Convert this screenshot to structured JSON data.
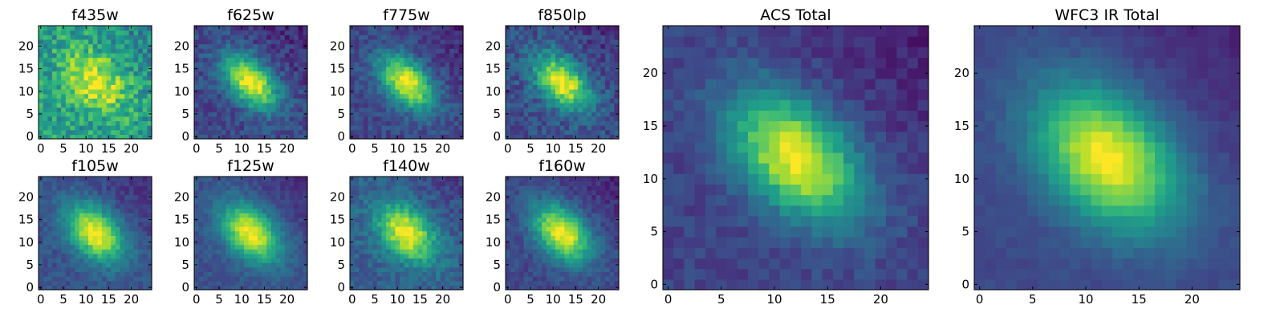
{
  "chart_data": [
    {
      "type": "heatmap",
      "title": "f435w",
      "center": [
        12,
        12
      ],
      "sigma": [
        5.2,
        3.8
      ],
      "angle_deg": -45,
      "background": 0.55,
      "peak": 0.45,
      "noise": 0.35,
      "xticks": [
        0,
        5,
        10,
        15,
        20
      ],
      "yticks": [
        0,
        5,
        10,
        15,
        20
      ],
      "xlim": [
        0,
        24
      ],
      "ylim": [
        0,
        24
      ],
      "colormap": "viridis"
    },
    {
      "type": "heatmap",
      "title": "f625w",
      "center": [
        12,
        12
      ],
      "sigma": [
        5.0,
        3.0
      ],
      "angle_deg": -45,
      "background": 0.22,
      "peak": 0.78,
      "noise": 0.2,
      "xticks": [
        0,
        5,
        10,
        15,
        20
      ],
      "yticks": [
        0,
        5,
        10,
        15,
        20
      ],
      "xlim": [
        0,
        24
      ],
      "ylim": [
        0,
        24
      ],
      "colormap": "viridis"
    },
    {
      "type": "heatmap",
      "title": "f775w",
      "center": [
        12,
        12
      ],
      "sigma": [
        5.0,
        3.0
      ],
      "angle_deg": -45,
      "background": 0.22,
      "peak": 0.78,
      "noise": 0.18,
      "xticks": [
        0,
        5,
        10,
        15,
        20
      ],
      "yticks": [
        0,
        5,
        10,
        15,
        20
      ],
      "xlim": [
        0,
        24
      ],
      "ylim": [
        0,
        24
      ],
      "colormap": "viridis"
    },
    {
      "type": "heatmap",
      "title": "f850lp",
      "center": [
        12,
        12
      ],
      "sigma": [
        5.0,
        3.1
      ],
      "angle_deg": -45,
      "background": 0.24,
      "peak": 0.76,
      "noise": 0.22,
      "xticks": [
        0,
        5,
        10,
        15,
        20
      ],
      "yticks": [
        0,
        5,
        10,
        15,
        20
      ],
      "xlim": [
        0,
        24
      ],
      "ylim": [
        0,
        24
      ],
      "colormap": "viridis"
    },
    {
      "type": "heatmap",
      "title": "f105w",
      "center": [
        12,
        12
      ],
      "sigma": [
        5.2,
        3.4
      ],
      "angle_deg": -45,
      "background": 0.25,
      "peak": 0.75,
      "noise": 0.14,
      "xticks": [
        0,
        5,
        10,
        15,
        20
      ],
      "yticks": [
        0,
        5,
        10,
        15,
        20
      ],
      "xlim": [
        0,
        24
      ],
      "ylim": [
        0,
        24
      ],
      "colormap": "viridis"
    },
    {
      "type": "heatmap",
      "title": "f125w",
      "center": [
        12,
        12
      ],
      "sigma": [
        5.2,
        3.4
      ],
      "angle_deg": -45,
      "background": 0.25,
      "peak": 0.75,
      "noise": 0.12,
      "xticks": [
        0,
        5,
        10,
        15,
        20
      ],
      "yticks": [
        0,
        5,
        10,
        15,
        20
      ],
      "xlim": [
        0,
        24
      ],
      "ylim": [
        0,
        24
      ],
      "colormap": "viridis"
    },
    {
      "type": "heatmap",
      "title": "f140w",
      "center": [
        12,
        12
      ],
      "sigma": [
        5.2,
        3.5
      ],
      "angle_deg": -45,
      "background": 0.3,
      "peak": 0.7,
      "noise": 0.18,
      "xticks": [
        0,
        5,
        10,
        15,
        20
      ],
      "yticks": [
        0,
        5,
        10,
        15,
        20
      ],
      "xlim": [
        0,
        24
      ],
      "ylim": [
        0,
        24
      ],
      "colormap": "viridis"
    },
    {
      "type": "heatmap",
      "title": "f160w",
      "center": [
        12,
        12
      ],
      "sigma": [
        5.2,
        3.4
      ],
      "angle_deg": -45,
      "background": 0.22,
      "peak": 0.78,
      "noise": 0.14,
      "xticks": [
        0,
        5,
        10,
        15,
        20
      ],
      "yticks": [
        0,
        5,
        10,
        15,
        20
      ],
      "xlim": [
        0,
        24
      ],
      "ylim": [
        0,
        24
      ],
      "colormap": "viridis"
    },
    {
      "type": "heatmap",
      "title": "ACS Total",
      "center": [
        12,
        12
      ],
      "sigma": [
        5.0,
        3.1
      ],
      "angle_deg": -45,
      "background": 0.2,
      "peak": 0.8,
      "noise": 0.12,
      "xticks": [
        0,
        5,
        10,
        15,
        20
      ],
      "yticks": [
        0,
        5,
        10,
        15,
        20
      ],
      "xlim": [
        0,
        24
      ],
      "ylim": [
        0,
        24
      ],
      "colormap": "viridis"
    },
    {
      "type": "heatmap",
      "title": "WFC3 IR Total",
      "center": [
        12,
        12
      ],
      "sigma": [
        5.4,
        3.7
      ],
      "angle_deg": -45,
      "background": 0.22,
      "peak": 0.78,
      "noise": 0.06,
      "xticks": [
        0,
        5,
        10,
        15,
        20
      ],
      "yticks": [
        0,
        5,
        10,
        15,
        20
      ],
      "xlim": [
        0,
        24
      ],
      "ylim": [
        0,
        24
      ],
      "colormap": "viridis"
    }
  ]
}
